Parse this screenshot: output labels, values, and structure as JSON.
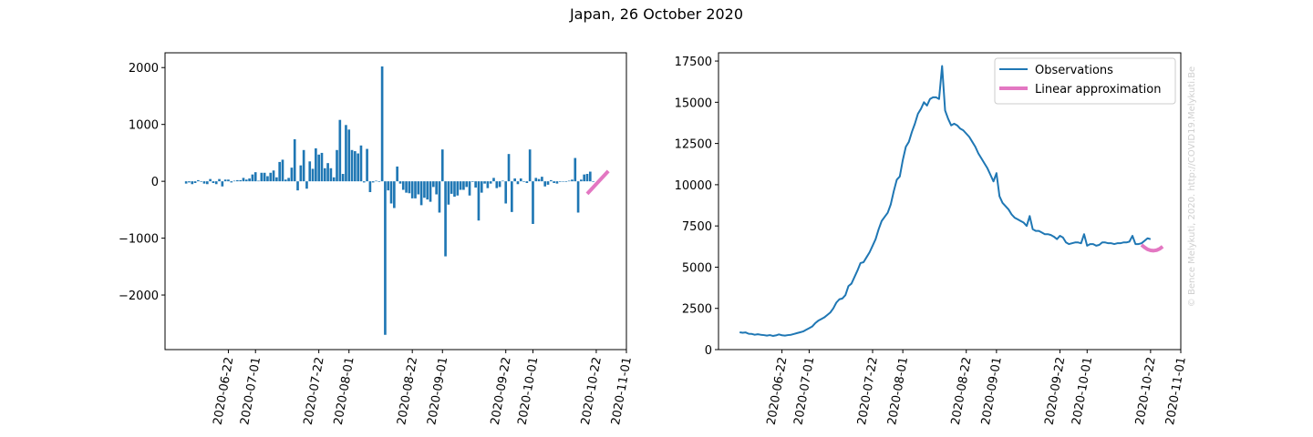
{
  "title": "Japan, 26 October 2020",
  "watermark": "© Bence Melykuti, 2020. http://COVID19.Melykuti.Be",
  "colors": {
    "bars": "#1f77b4",
    "line": "#1f77b4",
    "approx": "#e377c2"
  },
  "chart_data": [
    {
      "type": "bar",
      "title": "",
      "xlabel": "",
      "ylabel": "",
      "xlim": [
        "2020-06-01",
        "2020-11-01"
      ],
      "ylim": [
        -2960,
        2260
      ],
      "yticks": [
        -2000,
        -1000,
        0,
        1000,
        2000
      ],
      "ytick_labels": [
        "−2000",
        "−1000",
        "0",
        "1000",
        "2000"
      ],
      "xticks": [
        "2020-06-22",
        "2020-07-01",
        "2020-07-22",
        "2020-08-01",
        "2020-08-22",
        "2020-09-01",
        "2020-09-22",
        "2020-10-01",
        "2020-10-22",
        "2020-11-01"
      ],
      "series": [
        {
          "start_date": "2020-06-08",
          "values": [
            -40,
            -20,
            -50,
            -30,
            20,
            -10,
            -40,
            -50,
            40,
            -30,
            -50,
            40,
            -90,
            30,
            30,
            -20,
            10,
            20,
            20,
            60,
            30,
            50,
            120,
            160,
            10,
            150,
            150,
            90,
            150,
            190,
            70,
            340,
            380,
            30,
            60,
            240,
            740,
            -160,
            280,
            550,
            -130,
            350,
            220,
            580,
            470,
            500,
            230,
            320,
            230,
            70,
            550,
            1080,
            130,
            990,
            910,
            550,
            530,
            490,
            630,
            -20,
            570,
            -190,
            -20,
            10,
            -10,
            2020,
            -2700,
            -160,
            -390,
            -470,
            260,
            -40,
            -150,
            -200,
            -210,
            -300,
            -300,
            -230,
            -420,
            -290,
            -320,
            -360,
            -100,
            -230,
            -550,
            560,
            -1320,
            -410,
            -220,
            -270,
            -250,
            -150,
            -150,
            -100,
            -250,
            -10,
            -110,
            -690,
            -200,
            -40,
            -120,
            -40,
            60,
            -120,
            -100,
            10,
            -390,
            480,
            -540,
            50,
            -50,
            50,
            -10,
            -30,
            560,
            -750,
            60,
            40,
            80,
            -90,
            -60,
            20,
            -30,
            -40,
            -10,
            0,
            -10,
            10,
            30,
            410,
            -550,
            30,
            120,
            130,
            170,
            -10
          ],
          "name": ""
        },
        {
          "name": "",
          "x": [
            "2020-10-19",
            "2020-10-26"
          ],
          "values": [
            -220,
            180
          ]
        }
      ]
    },
    {
      "type": "line",
      "title": "",
      "xlabel": "",
      "ylabel": "",
      "xlim": [
        "2020-06-01",
        "2020-11-01"
      ],
      "ylim": [
        0,
        18000
      ],
      "yticks": [
        0,
        2500,
        5000,
        7500,
        10000,
        12500,
        15000,
        17500
      ],
      "xticks": [
        "2020-06-22",
        "2020-07-01",
        "2020-07-22",
        "2020-08-01",
        "2020-08-22",
        "2020-09-01",
        "2020-09-22",
        "2020-10-01",
        "2020-10-22",
        "2020-11-01"
      ],
      "legend": "top-right",
      "series": [
        {
          "name": "Observations",
          "start_date": "2020-06-08",
          "values": [
            1050,
            1020,
            1040,
            960,
            950,
            900,
            930,
            900,
            880,
            850,
            880,
            830,
            860,
            920,
            870,
            850,
            880,
            900,
            950,
            1000,
            1050,
            1100,
            1200,
            1300,
            1400,
            1600,
            1750,
            1850,
            1950,
            2100,
            2250,
            2500,
            2850,
            3050,
            3100,
            3300,
            3850,
            4000,
            4400,
            4800,
            5250,
            5300,
            5600,
            5900,
            6300,
            6700,
            7300,
            7800,
            8050,
            8300,
            8800,
            9600,
            10300,
            10500,
            11500,
            12300,
            12600,
            13200,
            13700,
            14300,
            14600,
            15000,
            14800,
            15200,
            15300,
            15300,
            15200,
            17200,
            14500,
            14000,
            13600,
            13700,
            13600,
            13400,
            13300,
            13100,
            12900,
            12600,
            12300,
            11900,
            11600,
            11300,
            11000,
            10600,
            10200,
            10700,
            9300,
            8900,
            8700,
            8500,
            8200,
            8000,
            7900,
            7800,
            7700,
            7500,
            8100,
            7300,
            7200,
            7200,
            7100,
            7000,
            7000,
            6950,
            6850,
            6700,
            6900,
            6800,
            6500,
            6400,
            6450,
            6500,
            6500,
            6450,
            7000,
            6300,
            6400,
            6400,
            6300,
            6350,
            6500,
            6500,
            6450,
            6450,
            6400,
            6450,
            6450,
            6500,
            6500,
            6550,
            6900,
            6400,
            6400,
            6450,
            6600,
            6750,
            6700
          ]
        },
        {
          "name": "Linear approximation",
          "x": [
            "2020-10-19",
            "2020-10-20",
            "2020-10-21",
            "2020-10-22",
            "2020-10-23",
            "2020-10-24",
            "2020-10-25",
            "2020-10-26"
          ],
          "values": [
            6350,
            6200,
            6080,
            6020,
            6000,
            6030,
            6110,
            6250
          ]
        }
      ]
    }
  ]
}
